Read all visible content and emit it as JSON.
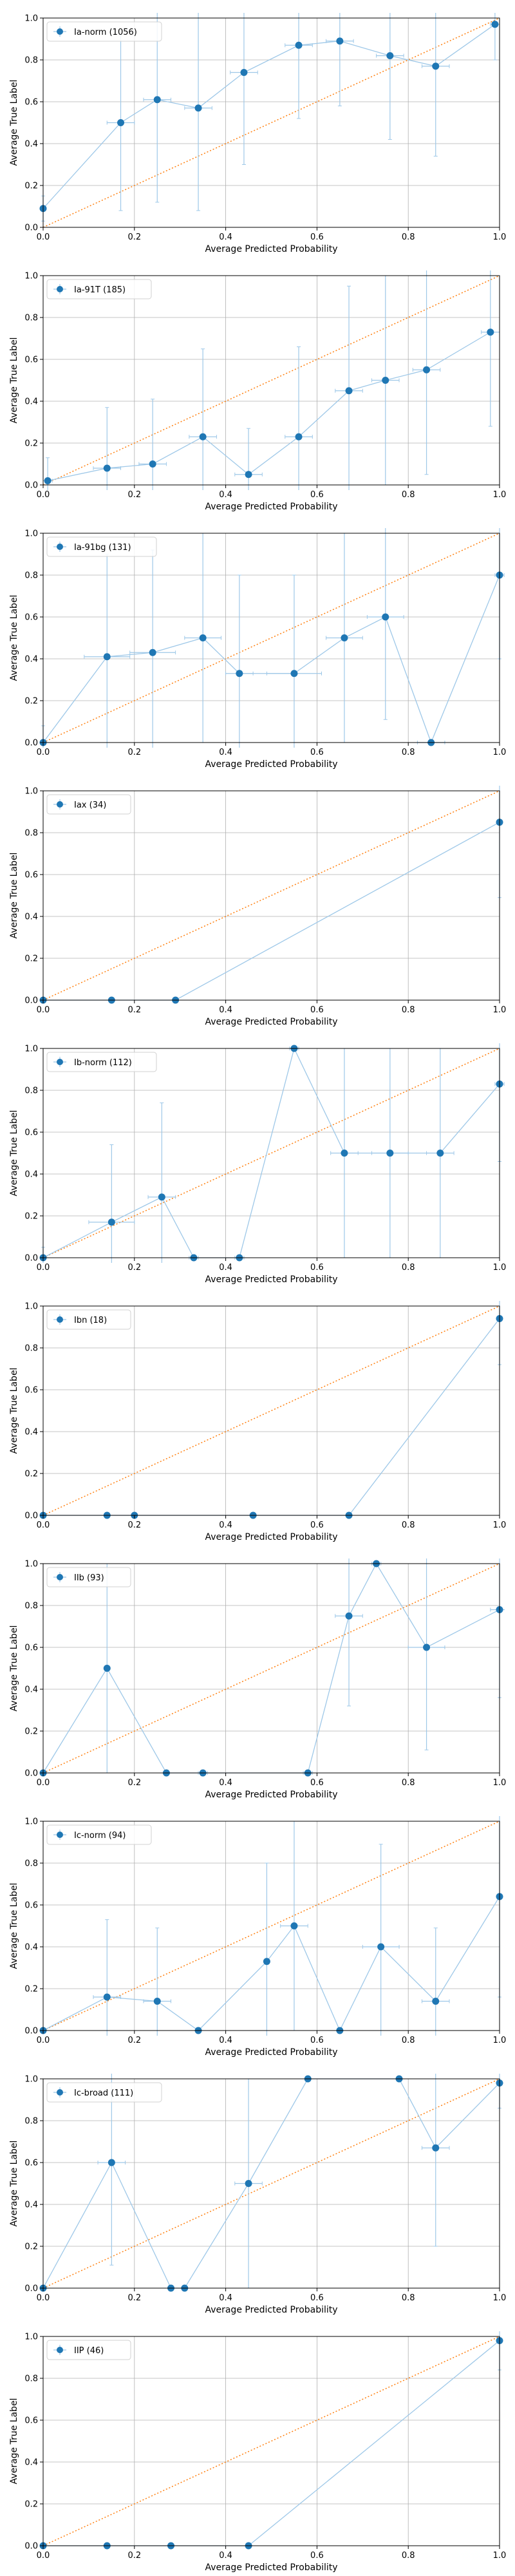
{
  "colors": {
    "series": "#1f77b4",
    "series_line": "#9ec8e8",
    "reference": "#ff7f0e",
    "grid": "#b0b0b0",
    "axis": "#000000"
  },
  "chart_data": [
    {
      "type": "line",
      "legend": "Ia-norm (1056)",
      "xlabel": "Average Predicted Probability",
      "ylabel": "Average True Label",
      "xlim": [
        0,
        1
      ],
      "ylim": [
        0,
        1
      ],
      "xticks": [
        "0.0",
        "0.2",
        "0.4",
        "0.6",
        "0.8",
        "1.0"
      ],
      "yticks": [
        "0.0",
        "0.2",
        "0.4",
        "0.6",
        "0.8",
        "1.0"
      ],
      "grid": true,
      "legend_position": "top-left",
      "reference_line": [
        [
          0,
          0
        ],
        [
          1,
          1
        ]
      ],
      "x": [
        0.0,
        0.17,
        0.25,
        0.34,
        0.44,
        0.56,
        0.65,
        0.76,
        0.86,
        0.99
      ],
      "y": [
        0.09,
        0.5,
        0.61,
        0.57,
        0.74,
        0.87,
        0.89,
        0.82,
        0.77,
        0.97
      ],
      "x_err": [
        0.005,
        0.03,
        0.03,
        0.03,
        0.03,
        0.03,
        0.03,
        0.03,
        0.03,
        0.01
      ],
      "y_err": [
        0.06,
        0.42,
        0.49,
        0.49,
        0.44,
        0.35,
        0.31,
        0.4,
        0.43,
        0.17
      ]
    },
    {
      "type": "line",
      "legend": "Ia-91T (185)",
      "xlabel": "Average Predicted Probability",
      "ylabel": "Average True Label",
      "xlim": [
        0,
        1
      ],
      "ylim": [
        0,
        1
      ],
      "xticks": [
        "0.0",
        "0.2",
        "0.4",
        "0.6",
        "0.8",
        "1.0"
      ],
      "yticks": [
        "0.0",
        "0.2",
        "0.4",
        "0.6",
        "0.8",
        "1.0"
      ],
      "grid": true,
      "legend_position": "top-left",
      "reference_line": [
        [
          0,
          0
        ],
        [
          1,
          1
        ]
      ],
      "x": [
        0.01,
        0.14,
        0.24,
        0.35,
        0.45,
        0.56,
        0.67,
        0.75,
        0.84,
        0.98
      ],
      "y": [
        0.02,
        0.08,
        0.1,
        0.23,
        0.05,
        0.23,
        0.45,
        0.5,
        0.55,
        0.73
      ],
      "x_err": [
        0.01,
        0.03,
        0.03,
        0.03,
        0.03,
        0.03,
        0.03,
        0.03,
        0.03,
        0.02
      ],
      "y_err": [
        0.11,
        0.29,
        0.31,
        0.42,
        0.22,
        0.43,
        0.5,
        0.5,
        0.5,
        0.45
      ]
    },
    {
      "type": "line",
      "legend": "Ia-91bg (131)",
      "xlabel": "Average Predicted Probability",
      "ylabel": "Average True Label",
      "xlim": [
        0,
        1
      ],
      "ylim": [
        0,
        1
      ],
      "xticks": [
        "0.0",
        "0.2",
        "0.4",
        "0.6",
        "0.8",
        "1.0"
      ],
      "yticks": [
        "0.0",
        "0.2",
        "0.4",
        "0.6",
        "0.8",
        "1.0"
      ],
      "grid": true,
      "legend_position": "top-left",
      "reference_line": [
        [
          0,
          0
        ],
        [
          1,
          1
        ]
      ],
      "x": [
        0.0,
        0.14,
        0.24,
        0.35,
        0.43,
        0.55,
        0.66,
        0.75,
        0.85,
        1.0
      ],
      "y": [
        0.0,
        0.41,
        0.43,
        0.5,
        0.33,
        0.33,
        0.5,
        0.6,
        0.0,
        0.8
      ],
      "x_err": [
        0.005,
        0.05,
        0.05,
        0.04,
        0.03,
        0.06,
        0.04,
        0.04,
        0.03,
        0.01
      ],
      "y_err": [
        0.08,
        0.49,
        0.49,
        0.5,
        0.47,
        0.47,
        0.5,
        0.49,
        0.0,
        0.4
      ]
    },
    {
      "type": "line",
      "legend": "Iax (34)",
      "xlabel": "Average Predicted Probability",
      "ylabel": "Average True Label",
      "xlim": [
        0,
        1
      ],
      "ylim": [
        0,
        1
      ],
      "xticks": [
        "0.0",
        "0.2",
        "0.4",
        "0.6",
        "0.8",
        "1.0"
      ],
      "yticks": [
        "0.0",
        "0.2",
        "0.4",
        "0.6",
        "0.8",
        "1.0"
      ],
      "grid": true,
      "legend_position": "top-left",
      "reference_line": [
        [
          0,
          0
        ],
        [
          1,
          1
        ]
      ],
      "x": [
        0.0,
        0.15,
        0.29,
        1.0
      ],
      "y": [
        0.0,
        0.0,
        0.0,
        0.85
      ],
      "x_err": [
        0.005,
        0.005,
        0.005,
        0.005
      ],
      "y_err": [
        0.0,
        0.0,
        0.0,
        0.36
      ]
    },
    {
      "type": "line",
      "legend": "Ib-norm (112)",
      "xlabel": "Average Predicted Probability",
      "ylabel": "Average True Label",
      "xlim": [
        0,
        1
      ],
      "ylim": [
        0,
        1
      ],
      "xticks": [
        "0.0",
        "0.2",
        "0.4",
        "0.6",
        "0.8",
        "1.0"
      ],
      "yticks": [
        "0.0",
        "0.2",
        "0.4",
        "0.6",
        "0.8",
        "1.0"
      ],
      "grid": true,
      "legend_position": "top-left",
      "reference_line": [
        [
          0,
          0
        ],
        [
          1,
          1
        ]
      ],
      "x": [
        0.0,
        0.15,
        0.26,
        0.33,
        0.43,
        0.55,
        0.66,
        0.76,
        0.87,
        1.0
      ],
      "y": [
        0.0,
        0.17,
        0.29,
        0.0,
        0.0,
        1.0,
        0.5,
        0.5,
        0.5,
        0.83
      ],
      "x_err": [
        0.005,
        0.05,
        0.03,
        0.01,
        0.01,
        0.01,
        0.03,
        0.04,
        0.03,
        0.01
      ],
      "y_err": [
        0.05,
        0.37,
        0.45,
        0.0,
        0.0,
        0.0,
        0.5,
        0.5,
        0.5,
        0.37
      ]
    },
    {
      "type": "line",
      "legend": "Ibn (18)",
      "xlabel": "Average Predicted Probability",
      "ylabel": "Average True Label",
      "xlim": [
        0,
        1
      ],
      "ylim": [
        0,
        1
      ],
      "xticks": [
        "0.0",
        "0.2",
        "0.4",
        "0.6",
        "0.8",
        "1.0"
      ],
      "yticks": [
        "0.0",
        "0.2",
        "0.4",
        "0.6",
        "0.8",
        "1.0"
      ],
      "grid": true,
      "legend_position": "top-left",
      "reference_line": [
        [
          0,
          0
        ],
        [
          1,
          1
        ]
      ],
      "x": [
        0.0,
        0.14,
        0.2,
        0.46,
        0.67,
        1.0
      ],
      "y": [
        0.0,
        0.0,
        0.0,
        0.0,
        0.0,
        0.94
      ],
      "x_err": [
        0.005,
        0.005,
        0.005,
        0.005,
        0.005,
        0.005
      ],
      "y_err": [
        0.0,
        0.0,
        0.0,
        0.0,
        0.0,
        0.22
      ]
    },
    {
      "type": "line",
      "legend": "IIb (93)",
      "xlabel": "Average Predicted Probability",
      "ylabel": "Average True Label",
      "xlim": [
        0,
        1
      ],
      "ylim": [
        0,
        1
      ],
      "xticks": [
        "0.0",
        "0.2",
        "0.4",
        "0.6",
        "0.8",
        "1.0"
      ],
      "yticks": [
        "0.0",
        "0.2",
        "0.4",
        "0.6",
        "0.8",
        "1.0"
      ],
      "grid": true,
      "legend_position": "top-left",
      "reference_line": [
        [
          0,
          0
        ],
        [
          1,
          1
        ]
      ],
      "x": [
        0.0,
        0.14,
        0.27,
        0.35,
        0.58,
        0.67,
        0.73,
        0.84,
        1.0
      ],
      "y": [
        0.0,
        0.5,
        0.0,
        0.0,
        0.0,
        0.75,
        1.0,
        0.6,
        0.78
      ],
      "x_err": [
        0.005,
        0.005,
        0.005,
        0.01,
        0.01,
        0.03,
        0.01,
        0.04,
        0.02
      ],
      "y_err": [
        0.0,
        0.5,
        0.0,
        0.0,
        0.0,
        0.43,
        0.0,
        0.49,
        0.42
      ]
    },
    {
      "type": "line",
      "legend": "Ic-norm (94)",
      "xlabel": "Average Predicted Probability",
      "ylabel": "Average True Label",
      "xlim": [
        0,
        1
      ],
      "ylim": [
        0,
        1
      ],
      "xticks": [
        "0.0",
        "0.2",
        "0.4",
        "0.6",
        "0.8",
        "1.0"
      ],
      "yticks": [
        "0.0",
        "0.2",
        "0.4",
        "0.6",
        "0.8",
        "1.0"
      ],
      "grid": true,
      "legend_position": "top-left",
      "reference_line": [
        [
          0,
          0
        ],
        [
          1,
          1
        ]
      ],
      "x": [
        0.0,
        0.14,
        0.25,
        0.34,
        0.49,
        0.55,
        0.65,
        0.74,
        0.86,
        1.0
      ],
      "y": [
        0.0,
        0.16,
        0.14,
        0.0,
        0.33,
        0.5,
        0.0,
        0.4,
        0.14,
        0.64
      ],
      "x_err": [
        0.005,
        0.03,
        0.03,
        0.005,
        0.005,
        0.03,
        0.005,
        0.04,
        0.03,
        0.005
      ],
      "y_err": [
        0.0,
        0.37,
        0.35,
        0.0,
        0.47,
        0.5,
        0.0,
        0.49,
        0.35,
        0.48
      ]
    },
    {
      "type": "line",
      "legend": "Ic-broad (111)",
      "xlabel": "Average Predicted Probability",
      "ylabel": "Average True Label",
      "xlim": [
        0,
        1
      ],
      "ylim": [
        0,
        1
      ],
      "xticks": [
        "0.0",
        "0.2",
        "0.4",
        "0.6",
        "0.8",
        "1.0"
      ],
      "yticks": [
        "0.0",
        "0.2",
        "0.4",
        "0.6",
        "0.8",
        "1.0"
      ],
      "grid": true,
      "legend_position": "top-left",
      "reference_line": [
        [
          0,
          0
        ],
        [
          1,
          1
        ]
      ],
      "x": [
        0.0,
        0.15,
        0.28,
        0.31,
        0.45,
        0.58,
        0.78,
        0.86,
        1.0
      ],
      "y": [
        0.0,
        0.6,
        0.0,
        0.0,
        0.5,
        1.0,
        1.0,
        0.67,
        0.98
      ],
      "x_err": [
        0.005,
        0.03,
        0.005,
        0.005,
        0.03,
        0.005,
        0.005,
        0.03,
        0.005
      ],
      "y_err": [
        0.0,
        0.49,
        0.0,
        0.0,
        0.5,
        0.0,
        0.0,
        0.47,
        0.12
      ]
    },
    {
      "type": "line",
      "legend": "IIP (46)",
      "xlabel": "Average Predicted Probability",
      "ylabel": "Average True Label",
      "xlim": [
        0,
        1
      ],
      "ylim": [
        0,
        1
      ],
      "xticks": [
        "0.0",
        "0.2",
        "0.4",
        "0.6",
        "0.8",
        "1.0"
      ],
      "yticks": [
        "0.0",
        "0.2",
        "0.4",
        "0.6",
        "0.8",
        "1.0"
      ],
      "grid": true,
      "legend_position": "top-left",
      "reference_line": [
        [
          0,
          0
        ],
        [
          1,
          1
        ]
      ],
      "x": [
        0.0,
        0.14,
        0.28,
        0.45,
        1.0
      ],
      "y": [
        0.0,
        0.0,
        0.0,
        0.0,
        0.98
      ],
      "x_err": [
        0.005,
        0.005,
        0.005,
        0.005,
        0.005
      ],
      "y_err": [
        0.0,
        0.0,
        0.0,
        0.0,
        0.14
      ]
    }
  ]
}
